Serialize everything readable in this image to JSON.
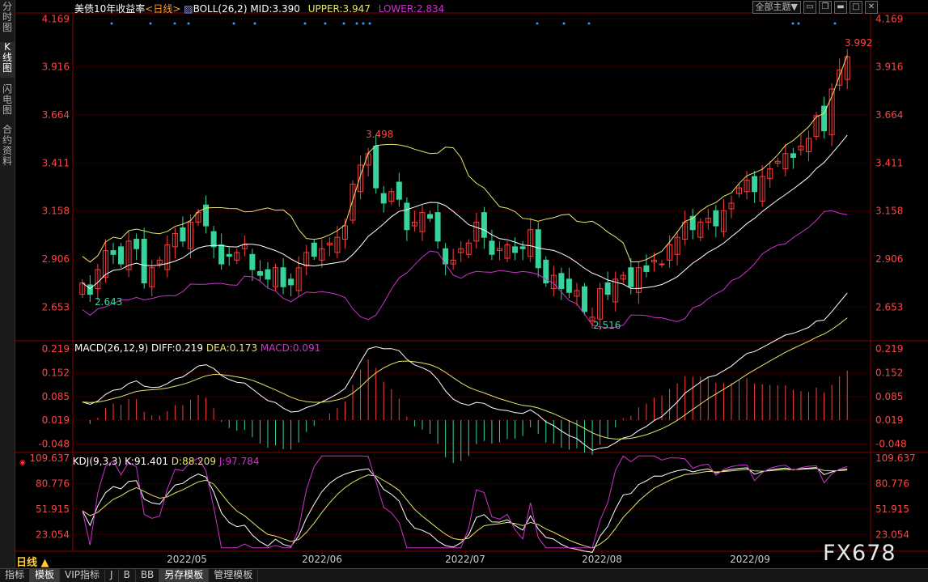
{
  "side_tabs": [
    "分时图",
    "K线图",
    "闪电图",
    "合约资料"
  ],
  "header": {
    "title": "美债10年收益率",
    "period_tag": "<日线>",
    "boll_label": "BOLL(26,2)",
    "mid": "MID:3.390",
    "upper": "UPPER:3.947",
    "lower": "LOWER:2.834",
    "toolbar": {
      "theme_label": "全部主题▼",
      "icons": [
        "window-icon",
        "restore-icon",
        "minimize-icon",
        "maximize-icon",
        "close-icon"
      ]
    }
  },
  "main_axis": {
    "ticks": [
      "4.169",
      "3.916",
      "3.664",
      "3.411",
      "3.158",
      "2.906",
      "2.653"
    ],
    "ylim": [
      2.48,
      4.2
    ]
  },
  "annotations": {
    "high_main": "3.992",
    "mid_high": "3.498",
    "low_left": "2.643",
    "low_mid": "2.516"
  },
  "macd": {
    "label": "MACD(26,12,9)",
    "diff": "DIFF:0.219",
    "dea": "DEA:0.173",
    "macd": "MACD:0.091",
    "ticks": [
      "0.219",
      "0.152",
      "0.085",
      "0.019",
      "-0.048"
    ]
  },
  "kdj": {
    "label": "KDJ(9,3,3)",
    "k": "K:91.401",
    "d": "D:88.209",
    "j": "J:97.784",
    "ticks": [
      "109.637",
      "80.776",
      "51.915",
      "23.054"
    ]
  },
  "x_ticks": [
    "2022/05",
    "2022/06",
    "2022/07",
    "2022/08",
    "2022/09"
  ],
  "period_label": "日线 ▲",
  "bottom_tabs": [
    "指标",
    "模板",
    "VIP指标",
    "J",
    "B",
    "BB",
    "另存模板",
    "管理模板"
  ],
  "watermark": "FX678",
  "colors": {
    "up": "#ff3c3c",
    "down": "#36d49a",
    "mid": "#ffffff",
    "upper": "#e6e66a",
    "lower": "#cc33cc",
    "dea": "#e6e66a",
    "grid": "#7a0000"
  },
  "chart_data": {
    "type": "candlestick",
    "title": "美债10年收益率 日线",
    "closes": [
      2.78,
      2.72,
      2.85,
      2.95,
      2.93,
      2.88,
      3.0,
      2.96,
      2.78,
      2.86,
      2.9,
      2.98,
      3.04,
      3.0,
      3.1,
      3.15,
      3.08,
      2.97,
      2.88,
      2.92,
      2.94,
      2.98,
      2.85,
      2.82,
      2.8,
      2.86,
      2.76,
      2.77,
      2.86,
      2.94,
      2.92,
      2.96,
      2.99,
      3.02,
      3.08,
      3.3,
      3.4,
      3.46,
      3.28,
      3.2,
      3.26,
      3.22,
      3.06,
      3.1,
      3.15,
      3.12,
      3.0,
      2.88,
      2.9,
      2.96,
      2.99,
      3.1,
      3.02,
      2.93,
      2.96,
      2.98,
      2.94,
      2.96,
      3.06,
      2.86,
      2.78,
      2.82,
      2.75,
      2.73,
      2.74,
      2.63,
      2.6,
      2.75,
      2.72,
      2.8,
      2.82,
      2.76,
      2.86,
      2.84,
      2.9,
      2.88,
      2.98,
      3.02,
      3.1,
      3.06,
      3.1,
      3.12,
      3.08,
      3.16,
      3.2,
      3.28,
      3.32,
      3.26,
      3.34,
      3.38,
      3.42,
      3.46,
      3.44,
      3.5,
      3.54,
      3.66,
      3.58,
      3.8,
      3.9,
      3.97
    ]
  }
}
